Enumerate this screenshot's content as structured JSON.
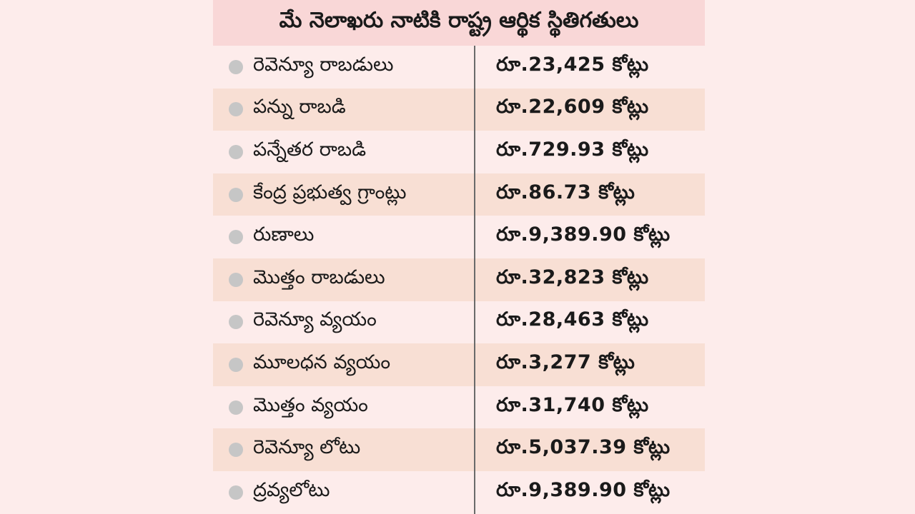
{
  "title": "మే నెలాఖరు నాటికి రాష్ట్ర ఆర్థిక స్థితిగతులు",
  "colors": {
    "background": "#fdeceb",
    "title_bar": "#f9d7d7",
    "alt_row": "#f8dfd4",
    "bullet": "#c6c6c6",
    "divider": "#6a6a6a"
  },
  "rows": [
    {
      "label": "రెవెన్యూ రాబడులు",
      "value": "రూ.23,425 కోట్లు"
    },
    {
      "label": "పన్ను రాబడి",
      "value": "రూ.22,609 కోట్లు"
    },
    {
      "label": "పన్నేతర రాబడి",
      "value": "రూ.729.93 కోట్లు"
    },
    {
      "label": "కేంద్ర ప్రభుత్వ గ్రాంట్లు",
      "value": "రూ.86.73 కోట్లు"
    },
    {
      "label": "రుణాలు",
      "value": "రూ.9,389.90 కోట్లు"
    },
    {
      "label": "మొత్తం రాబడులు",
      "value": "రూ.32,823 కోట్లు"
    },
    {
      "label": "రెవెన్యూ వ్యయం",
      "value": "రూ.28,463 కోట్లు"
    },
    {
      "label": "మూలధన వ్యయం",
      "value": "రూ.3,277 కోట్లు"
    },
    {
      "label": "మొత్తం వ్యయం",
      "value": "రూ.31,740 కోట్లు"
    },
    {
      "label": "రెవెన్యూ లోటు",
      "value": "రూ.5,037.39 కోట్లు"
    },
    {
      "label": "ద్రవ్యలోటు",
      "value": "రూ.9,389.90 కోట్లు"
    }
  ]
}
